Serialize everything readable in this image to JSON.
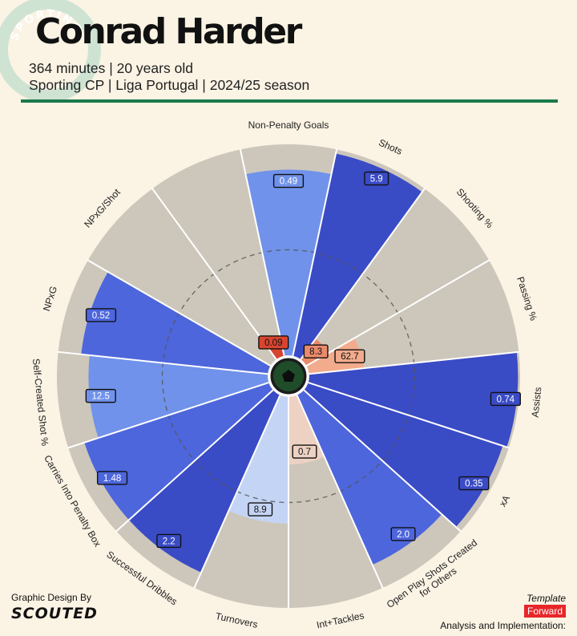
{
  "header": {
    "player_name": "Conrad Harder",
    "line1": "364 minutes | 20 years old",
    "line2": "Sporting CP | Liga Portugal | 2024/25 season",
    "logo_text": "SPORTING"
  },
  "footer": {
    "design_label": "Graphic Design By",
    "design_brand": "SCOUTED",
    "template_label": "Template",
    "template_value": "Forward",
    "analysis_label": "Analysis and Implementation:"
  },
  "colors": {
    "background": "#fbf3e4",
    "slice_background": "#cdc7bb",
    "accent_rule": "#1a7a4c",
    "blue_dark": "#3a4bc6",
    "blue_mid": "#4d66dc",
    "blue_light": "#7092ea",
    "blue_pale": "#c4d4f4",
    "red": "#d8452f",
    "salmon": "#ea8a6c",
    "salmon_pale": "#f2ab8c",
    "peach_pale": "#edd2c3"
  },
  "chart_data": {
    "type": "pie",
    "variant": "radial percentile pizza",
    "percentile_range": [
      0,
      100
    ],
    "reference_line": 50,
    "slices": [
      {
        "label": "Non-Penalty Goals",
        "value": "0.49",
        "percentile": 88,
        "color": "#7092ea"
      },
      {
        "label": "Shots",
        "value": "5.9",
        "percentile": 98,
        "color": "#3a4bc6"
      },
      {
        "label": "Shooting %",
        "value": "8.3",
        "percentile": 12,
        "color": "#ea8a6c"
      },
      {
        "label": "Passing %",
        "value": "62.7",
        "percentile": 26,
        "color": "#f2ab8c"
      },
      {
        "label": "Assists",
        "value": "0.74",
        "percentile": 99,
        "color": "#3a4bc6"
      },
      {
        "label": "xA",
        "value": "0.35",
        "percentile": 97,
        "color": "#3a4bc6"
      },
      {
        "label": "Open Play Shots Created for Others",
        "value": "2.0",
        "percentile": 88,
        "color": "#4d66dc"
      },
      {
        "label": "Int+Tackles",
        "value": "0.7",
        "percentile": 32,
        "color": "#edd2c3"
      },
      {
        "label": "Turnovers",
        "value": "8.9",
        "percentile": 60,
        "color": "#c4d4f4"
      },
      {
        "label": "Successful Dribbles",
        "value": "2.2",
        "percentile": 92,
        "color": "#3a4bc6"
      },
      {
        "label": "Carries Into Penalty Box",
        "value": "1.48",
        "percentile": 92,
        "color": "#4d66dc"
      },
      {
        "label": "Self-Created Shot %",
        "value": "12.5",
        "percentile": 85,
        "color": "#7092ea"
      },
      {
        "label": "NPxG",
        "value": "0.52",
        "percentile": 89,
        "color": "#4d66dc"
      },
      {
        "label": "NPxG/Shot",
        "value": "",
        "percentile": 0,
        "color": "#cdc7bb"
      },
      {
        "label": "",
        "value": "0.09",
        "percentile": 10,
        "color": "#d8452f"
      }
    ]
  }
}
